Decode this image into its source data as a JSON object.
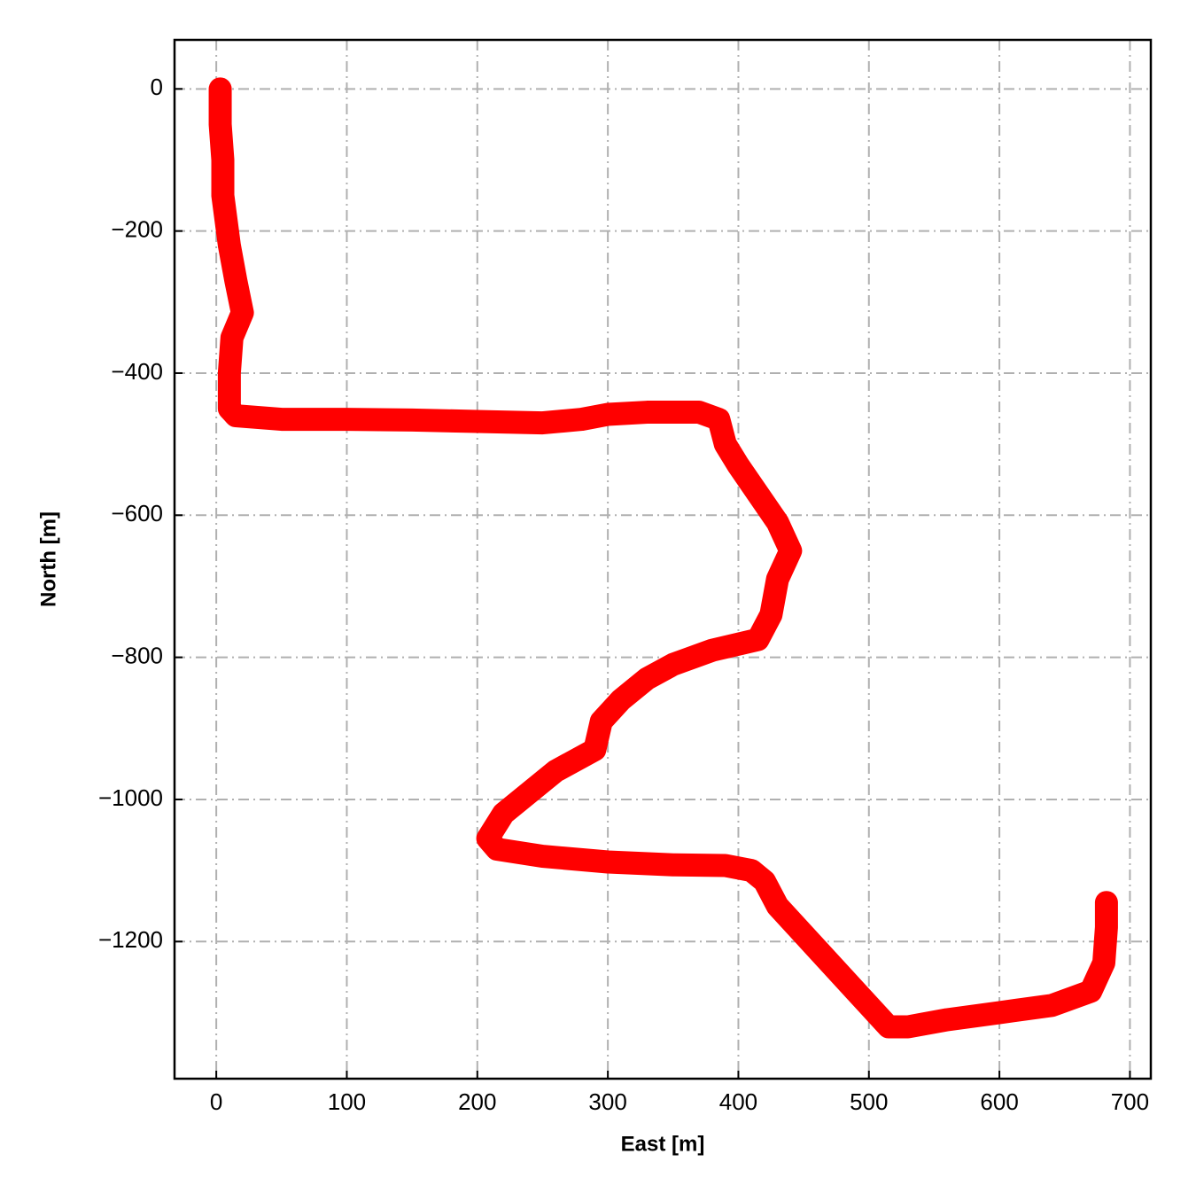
{
  "chart_data": {
    "type": "line",
    "xlabel": "East [m]",
    "ylabel": "North [m]",
    "xlim": [
      -32,
      716
    ],
    "ylim": [
      -1393,
      69
    ],
    "xticks": [
      0,
      100,
      200,
      300,
      400,
      500,
      600,
      700
    ],
    "yticks": [
      0,
      {
        "value": -200,
        "label": "−200"
      },
      {
        "value": -400,
        "label": "−400"
      },
      {
        "value": -600,
        "label": "−600"
      },
      {
        "value": -800,
        "label": "−800"
      },
      {
        "value": -1000,
        "label": "−1000"
      },
      {
        "value": -1200,
        "label": "−1200"
      }
    ],
    "grid": true,
    "series": [
      {
        "color": "#ff0000",
        "x": [
          3,
          3,
          5,
          5,
          10,
          15,
          20,
          12,
          10,
          10,
          15,
          50,
          100,
          150,
          200,
          250,
          280,
          300,
          330,
          370,
          385,
          390,
          400,
          415,
          430,
          440,
          430,
          425,
          415,
          380,
          350,
          330,
          310,
          295,
          290,
          260,
          240,
          220,
          208,
          215,
          250,
          300,
          350,
          390,
          410,
          420,
          430,
          460,
          490,
          515,
          530,
          560,
          600,
          640,
          670,
          680,
          682,
          682
        ],
        "values": [
          0,
          -50,
          -100,
          -150,
          -220,
          -270,
          -315,
          -350,
          -400,
          -450,
          -460,
          -465,
          -465,
          -466,
          -468,
          -470,
          -465,
          -458,
          -455,
          -455,
          -465,
          -500,
          -530,
          -570,
          -610,
          -650,
          -690,
          -740,
          -775,
          -790,
          -810,
          -830,
          -860,
          -890,
          -930,
          -960,
          -990,
          -1020,
          -1055,
          -1070,
          -1080,
          -1088,
          -1092,
          -1093,
          -1100,
          -1115,
          -1150,
          -1210,
          -1270,
          -1320,
          -1320,
          -1310,
          -1300,
          -1290,
          -1270,
          -1230,
          -1180,
          -1145
        ]
      }
    ]
  }
}
